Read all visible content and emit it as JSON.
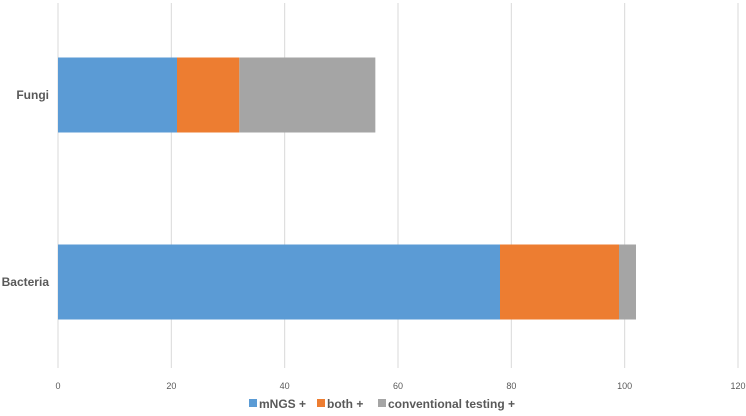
{
  "chart_data": {
    "type": "bar",
    "orientation": "horizontal",
    "stacked": true,
    "title": "",
    "xlabel": "",
    "ylabel": "",
    "categories": [
      "Fungi",
      "Bacteria"
    ],
    "series": [
      {
        "name": "mNGS +",
        "values": [
          21,
          78
        ],
        "color": "#5B9BD5"
      },
      {
        "name": "both +",
        "values": [
          11,
          21
        ],
        "color": "#ED7D31"
      },
      {
        "name": "conventional testing +",
        "values": [
          24,
          3
        ],
        "color": "#A5A5A5"
      }
    ],
    "xlim": [
      0,
      120
    ],
    "xticks": [
      "0",
      "20",
      "40",
      "60",
      "80",
      "100",
      "120"
    ],
    "grid": true,
    "legend_position": "bottom"
  }
}
